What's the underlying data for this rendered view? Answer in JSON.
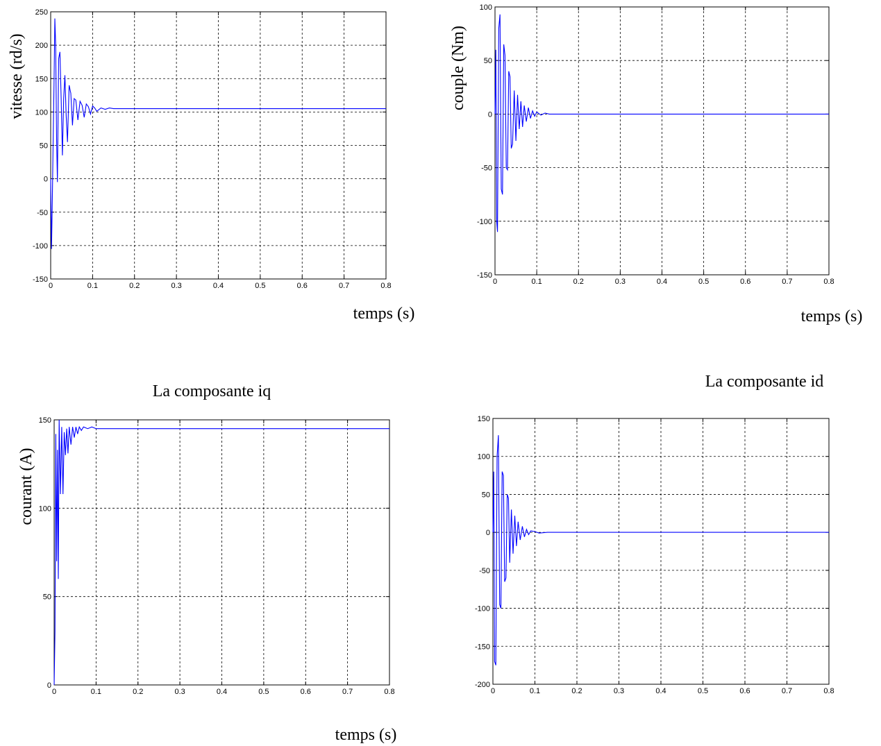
{
  "colors": {
    "series": "#0000ff",
    "axes": "#000000",
    "background": "#ffffff"
  },
  "chart_data": [
    {
      "type": "line",
      "title": "",
      "xlabel": "temps (s)",
      "ylabel": "vitesse (rd/s)",
      "xlim": [
        0,
        0.8
      ],
      "ylim": [
        -150,
        250
      ],
      "xticks": [
        "0",
        "0.1",
        "0.2",
        "0.3",
        "0.4",
        "0.5",
        "0.6",
        "0.7",
        "0.8"
      ],
      "yticks": [
        "-150",
        "-100",
        "-50",
        "0",
        "50",
        "100",
        "150",
        "200",
        "250"
      ],
      "grid": true,
      "series": [
        {
          "x": [
            0,
            0.002,
            0.004,
            0.006,
            0.008,
            0.01,
            0.012,
            0.014,
            0.016,
            0.019,
            0.022,
            0.025,
            0.028,
            0.031,
            0.034,
            0.037,
            0.04,
            0.044,
            0.048,
            0.052,
            0.056,
            0.06,
            0.065,
            0.07,
            0.075,
            0.08,
            0.085,
            0.09,
            0.095,
            0.1,
            0.105,
            0.11,
            0.12,
            0.13,
            0.14,
            0.15,
            0.17,
            0.2,
            0.3,
            0.5,
            0.8
          ],
          "y": [
            0,
            -105,
            -30,
            60,
            140,
            240,
            200,
            60,
            -5,
            180,
            190,
            120,
            35,
            120,
            155,
            95,
            55,
            140,
            128,
            80,
            120,
            118,
            88,
            116,
            110,
            92,
            112,
            108,
            97,
            109,
            106,
            101,
            106,
            104,
            106,
            105,
            105,
            105,
            105,
            105,
            105
          ]
        }
      ]
    },
    {
      "type": "line",
      "title": "",
      "xlabel": "temps (s)",
      "ylabel": "couple (Nm)",
      "xlim": [
        0,
        0.8
      ],
      "ylim": [
        -150,
        100
      ],
      "xticks": [
        "0",
        "0.1",
        "0.2",
        "0.3",
        "0.4",
        "0.5",
        "0.6",
        "0.7",
        "0.8"
      ],
      "yticks": [
        "-150",
        "-100",
        "-50",
        "0",
        "50",
        "100"
      ],
      "grid": true,
      "series": [
        {
          "x": [
            0,
            0.002,
            0.004,
            0.006,
            0.009,
            0.012,
            0.015,
            0.018,
            0.021,
            0.024,
            0.027,
            0.03,
            0.033,
            0.036,
            0.039,
            0.042,
            0.046,
            0.05,
            0.054,
            0.058,
            0.062,
            0.066,
            0.07,
            0.075,
            0.08,
            0.085,
            0.09,
            0.095,
            0.1,
            0.11,
            0.12,
            0.13,
            0.15,
            0.2,
            0.4,
            0.8
          ],
          "y": [
            0,
            60,
            -100,
            -110,
            80,
            93,
            -70,
            -75,
            65,
            55,
            -50,
            -52,
            40,
            35,
            -32,
            -28,
            22,
            -25,
            18,
            -14,
            12,
            -12,
            8,
            -7,
            6,
            -4,
            3,
            -2,
            2,
            -1,
            1,
            0,
            0,
            0,
            0,
            0
          ]
        }
      ]
    },
    {
      "type": "line",
      "title": "La composante iq",
      "xlabel": "temps (s)",
      "ylabel": "courant (A)",
      "xlim": [
        0,
        0.8
      ],
      "ylim": [
        0,
        150
      ],
      "xticks": [
        "0",
        "0.1",
        "0.2",
        "0.3",
        "0.4",
        "0.5",
        "0.6",
        "0.7",
        "0.8"
      ],
      "yticks": [
        "0",
        "50",
        "100",
        "150"
      ],
      "grid": true,
      "series": [
        {
          "x": [
            0,
            0.002,
            0.004,
            0.006,
            0.008,
            0.01,
            0.012,
            0.015,
            0.018,
            0.021,
            0.024,
            0.027,
            0.03,
            0.033,
            0.036,
            0.04,
            0.044,
            0.048,
            0.052,
            0.056,
            0.06,
            0.065,
            0.07,
            0.08,
            0.09,
            0.1,
            0.12,
            0.15,
            0.2,
            0.5,
            0.8
          ],
          "y": [
            0,
            30,
            142,
            70,
            133,
            60,
            150,
            108,
            146,
            108,
            143,
            130,
            145,
            131,
            146,
            136,
            146,
            140,
            146,
            142,
            146,
            144,
            146,
            145,
            146,
            145,
            145,
            145,
            145,
            145,
            145
          ]
        }
      ]
    },
    {
      "type": "line",
      "title": "La composante id",
      "xlabel": "",
      "ylabel": "",
      "xlim": [
        0,
        0.8
      ],
      "ylim": [
        -200,
        150
      ],
      "xticks": [
        "0",
        "0.1",
        "0.2",
        "0.3",
        "0.4",
        "0.5",
        "0.6",
        "0.7",
        "0.8"
      ],
      "yticks": [
        "-200",
        "-150",
        "-100",
        "-50",
        "0",
        "50",
        "100",
        "150"
      ],
      "grid": true,
      "series": [
        {
          "x": [
            0,
            0.002,
            0.004,
            0.007,
            0.01,
            0.013,
            0.016,
            0.019,
            0.022,
            0.025,
            0.028,
            0.031,
            0.034,
            0.037,
            0.04,
            0.044,
            0.048,
            0.052,
            0.056,
            0.06,
            0.065,
            0.07,
            0.075,
            0.08,
            0.085,
            0.09,
            0.1,
            0.11,
            0.13,
            0.16,
            0.2,
            0.4,
            0.8
          ],
          "y": [
            0,
            80,
            -170,
            -175,
            100,
            128,
            -95,
            -100,
            80,
            75,
            -65,
            -60,
            50,
            45,
            -40,
            30,
            -28,
            22,
            -18,
            14,
            -10,
            8,
            -6,
            4,
            -3,
            2,
            1,
            -1,
            0,
            0,
            0,
            0,
            0
          ]
        }
      ]
    }
  ]
}
